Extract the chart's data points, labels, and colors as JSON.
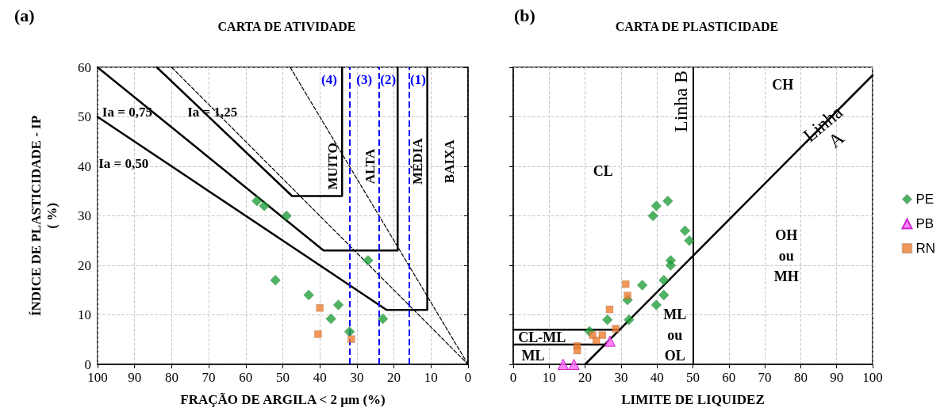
{
  "chart_data": [
    {
      "type": "scatter",
      "title": "CARTA DE ATIVIDADE",
      "xlabel": "FRAÇÃO DE ARGILA < 2 µm (%)",
      "ylabel": "ÍNDICE DE PLASTICIDADE - IP\n( %)",
      "xlim": [
        100,
        0
      ],
      "xticks": [
        100,
        90,
        80,
        70,
        60,
        50,
        40,
        30,
        20,
        10,
        0
      ],
      "ylim": [
        0,
        60
      ],
      "yticks": [
        0,
        10,
        20,
        30,
        40,
        50,
        60
      ],
      "grid": true,
      "legend": false,
      "series": [
        {
          "type": "line",
          "color": "#000000",
          "line_style": "solid",
          "marker": "none",
          "x": [
            100,
            22,
            11,
            11
          ],
          "values": [
            50,
            11,
            11,
            60
          ]
        },
        {
          "type": "line",
          "color": "#000000",
          "line_style": "solid",
          "marker": "none",
          "x": [
            100,
            39,
            19,
            19
          ],
          "values": [
            60,
            23,
            23,
            60
          ]
        },
        {
          "type": "line",
          "color": "#000000",
          "line_style": "solid",
          "marker": "none",
          "x": [
            84,
            47.5,
            34,
            34
          ],
          "values": [
            60,
            34,
            34,
            60
          ]
        },
        {
          "type": "line",
          "color": "#000000",
          "line_style": "dashed",
          "marker": "none",
          "x": [
            80,
            0
          ],
          "values": [
            60,
            0
          ]
        },
        {
          "type": "line",
          "color": "#000000",
          "line_style": "dashed",
          "marker": "none",
          "x": [
            48,
            0
          ],
          "values": [
            60,
            0
          ]
        },
        {
          "color": "#22a03c",
          "marker": "diamond",
          "x": [
            57,
            55,
            49,
            52,
            43,
            37,
            35,
            32,
            27,
            23
          ],
          "values": [
            33,
            32,
            30,
            17,
            14,
            9.2,
            12,
            6.6,
            21,
            9.2
          ]
        },
        {
          "color": "#ed7d31",
          "marker": "square",
          "x": [
            40,
            40.5,
            31.5
          ],
          "values": [
            11.4,
            6.1,
            5.1
          ]
        }
      ],
      "ref_lines": [
        {
          "axis": "x",
          "value": 32,
          "color": "#0000ff",
          "line_style": "dashed"
        },
        {
          "axis": "x",
          "value": 24,
          "color": "#0000ff",
          "line_style": "dashed"
        },
        {
          "axis": "x",
          "value": 16,
          "color": "#0000ff",
          "line_style": "dashed"
        }
      ],
      "annotations": [
        "(a)",
        "Ia = 0,50",
        "Ia = 0,75",
        "Ia = 1,25",
        "(4)",
        "(3)",
        "(2)",
        "(1)",
        "MUITO",
        "ALTA",
        "MÉDIA",
        "BAIXA"
      ]
    },
    {
      "type": "scatter",
      "title": "CARTA DE PLASTICIDADE",
      "xlabel": "LIMITE DE LIQUIDEZ",
      "xlim": [
        0,
        100
      ],
      "xticks": [
        0,
        10,
        20,
        30,
        40,
        50,
        60,
        70,
        80,
        90,
        100
      ],
      "ylim": [
        0,
        60
      ],
      "yticks": [
        0,
        10,
        20,
        30,
        40,
        50,
        60
      ],
      "grid": true,
      "tick_labels": "x",
      "legend": "right",
      "series": [
        {
          "type": "line",
          "color": "#000000",
          "line_style": "solid",
          "marker": "none",
          "x": [
            20,
            100
          ],
          "values": [
            0,
            58.4
          ]
        },
        {
          "type": "line",
          "color": "#000000",
          "line_style": "solid",
          "marker": "none",
          "x": [
            0,
            29.6
          ],
          "values": [
            7,
            7
          ]
        },
        {
          "type": "line",
          "color": "#000000",
          "line_style": "solid",
          "marker": "none",
          "x": [
            0,
            25.5
          ],
          "values": [
            4,
            4
          ]
        },
        {
          "name": "PE",
          "color": "#22a03c",
          "marker": "diamond",
          "x": [
            38.9,
            39.8,
            43,
            47.8,
            49,
            43.8,
            43.8,
            41.9,
            35.9,
            41.9,
            31.8,
            39.8,
            26.2,
            32.2,
            21.2
          ],
          "values": [
            30,
            32,
            33,
            27,
            25,
            21,
            20,
            17,
            16,
            14,
            13,
            12,
            9,
            9,
            6.7
          ]
        },
        {
          "name": "PB",
          "color": "#ff66ff",
          "marker": "triangle",
          "x": [
            26.9,
            13.9,
            16.9
          ],
          "values": [
            4.7,
            0,
            0
          ]
        },
        {
          "name": "RN",
          "color": "#ed7d31",
          "marker": "square",
          "x": [
            31.3,
            31.8,
            26.8,
            28.5,
            22.1,
            24.8,
            23.1,
            17.8,
            17.8
          ],
          "values": [
            16.2,
            13.9,
            11.1,
            7.2,
            5.9,
            5.9,
            4.8,
            3.7,
            2.8
          ]
        }
      ],
      "ref_lines": [
        {
          "axis": "x",
          "value": 50,
          "label": "Linha B",
          "color": "#000000",
          "line_style": "solid"
        }
      ],
      "annotations": [
        "(b)",
        "CH",
        "CL",
        "OH\nou\nMH",
        "ML\nou\nOL",
        "CL-ML",
        "ML",
        "Linha\nA"
      ]
    }
  ]
}
